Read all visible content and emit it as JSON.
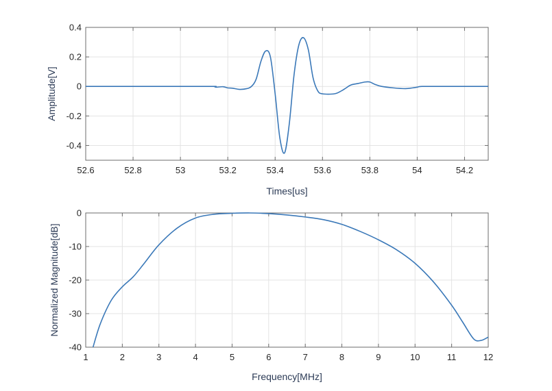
{
  "chart_data": [
    {
      "type": "line",
      "xlabel": "Times[us]",
      "ylabel": "Amplitude[V]",
      "xlim": [
        52.6,
        54.3
      ],
      "ylim": [
        -0.5,
        0.4
      ],
      "xticks": [
        52.6,
        52.8,
        53,
        53.2,
        53.4,
        53.6,
        53.8,
        54,
        54.2
      ],
      "yticks": [
        -0.4,
        -0.2,
        0,
        0.2,
        0.4
      ],
      "xtick_labels": [
        "52.6",
        "52.8",
        "53",
        "53.2",
        "53.4",
        "53.6",
        "53.8",
        "54",
        "54.2"
      ],
      "ytick_labels": [
        "-0.4",
        "-0.2",
        "0",
        "0.2",
        "0.4"
      ],
      "grid": true,
      "color": "#3a78b8",
      "series": [
        {
          "x": [
            52.6,
            53.1,
            53.14,
            53.15,
            53.18,
            53.2,
            53.22,
            53.25,
            53.28,
            53.3,
            53.32,
            53.34,
            53.36,
            53.38,
            53.4,
            53.42,
            53.44,
            53.46,
            53.48,
            53.5,
            53.52,
            53.54,
            53.56,
            53.58,
            53.6,
            53.65,
            53.68,
            53.7,
            53.72,
            53.75,
            53.78,
            53.8,
            53.82,
            53.85,
            53.9,
            53.95,
            53.98,
            54.0,
            54.02,
            54.1,
            54.3
          ],
          "y": [
            0,
            0,
            0,
            -0.005,
            -0.002,
            -0.01,
            -0.012,
            -0.02,
            -0.015,
            0.0,
            0.05,
            0.17,
            0.24,
            0.2,
            -0.05,
            -0.35,
            -0.45,
            -0.25,
            0.08,
            0.28,
            0.33,
            0.25,
            0.06,
            -0.03,
            -0.05,
            -0.05,
            -0.03,
            -0.01,
            0.01,
            0.02,
            0.03,
            0.03,
            0.015,
            0.0,
            -0.01,
            -0.015,
            -0.01,
            -0.005,
            0.0,
            0.0,
            0.0
          ]
        }
      ]
    },
    {
      "type": "line",
      "xlabel": "Frequency[MHz]",
      "ylabel": "Normalized Magnitude[dB]",
      "xlim": [
        1,
        12
      ],
      "ylim": [
        -40,
        0
      ],
      "xticks": [
        1,
        2,
        3,
        4,
        5,
        6,
        7,
        8,
        9,
        10,
        11,
        12
      ],
      "yticks": [
        -40,
        -30,
        -20,
        -10,
        0
      ],
      "xtick_labels": [
        "1",
        "2",
        "3",
        "4",
        "5",
        "6",
        "7",
        "8",
        "9",
        "10",
        "11",
        "12"
      ],
      "ytick_labels": [
        "-40",
        "-30",
        "-20",
        "-10",
        "0"
      ],
      "grid": true,
      "color": "#3a78b8",
      "series": [
        {
          "x": [
            1.2,
            1.4,
            1.7,
            2.0,
            2.3,
            2.6,
            3.0,
            3.5,
            4.0,
            4.5,
            5.0,
            5.5,
            6.0,
            6.5,
            7.0,
            7.5,
            8.0,
            8.5,
            9.0,
            9.5,
            10.0,
            10.5,
            11.0,
            11.3,
            11.6,
            11.8,
            12.0
          ],
          "y": [
            -40,
            -33,
            -26,
            -22,
            -19,
            -15,
            -9.5,
            -4.5,
            -1.5,
            -0.4,
            -0.1,
            0,
            -0.2,
            -0.6,
            -1.2,
            -2.0,
            -3.4,
            -5.5,
            -8.0,
            -11,
            -15,
            -20.5,
            -27.5,
            -32.5,
            -37.5,
            -38,
            -37
          ]
        }
      ]
    }
  ]
}
